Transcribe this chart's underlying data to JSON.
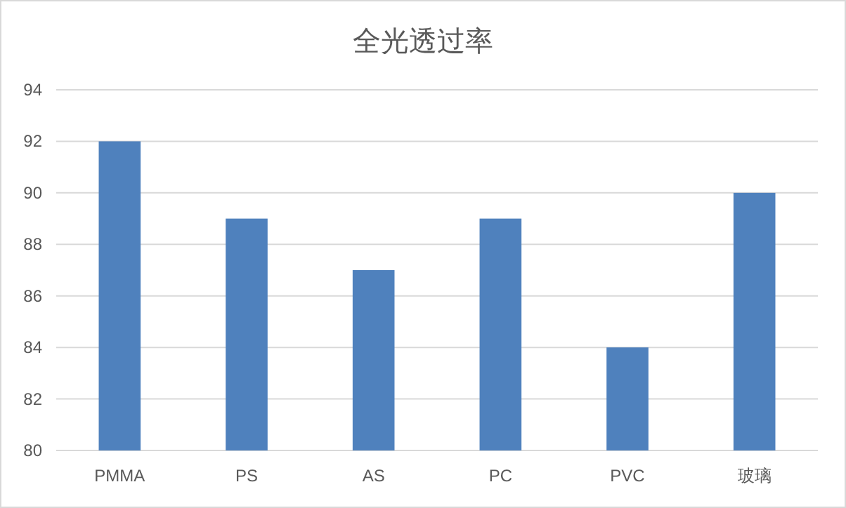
{
  "chart_data": {
    "type": "bar",
    "title": "全光透过率",
    "categories": [
      "PMMA",
      "PS",
      "AS",
      "PC",
      "PVC",
      "玻璃"
    ],
    "values": [
      92,
      89,
      87,
      89,
      84,
      90
    ],
    "color": "#4f81bd",
    "ylim": [
      80,
      94
    ],
    "yticks": [
      80,
      82,
      84,
      86,
      88,
      90,
      92,
      94
    ],
    "grid": "y"
  }
}
